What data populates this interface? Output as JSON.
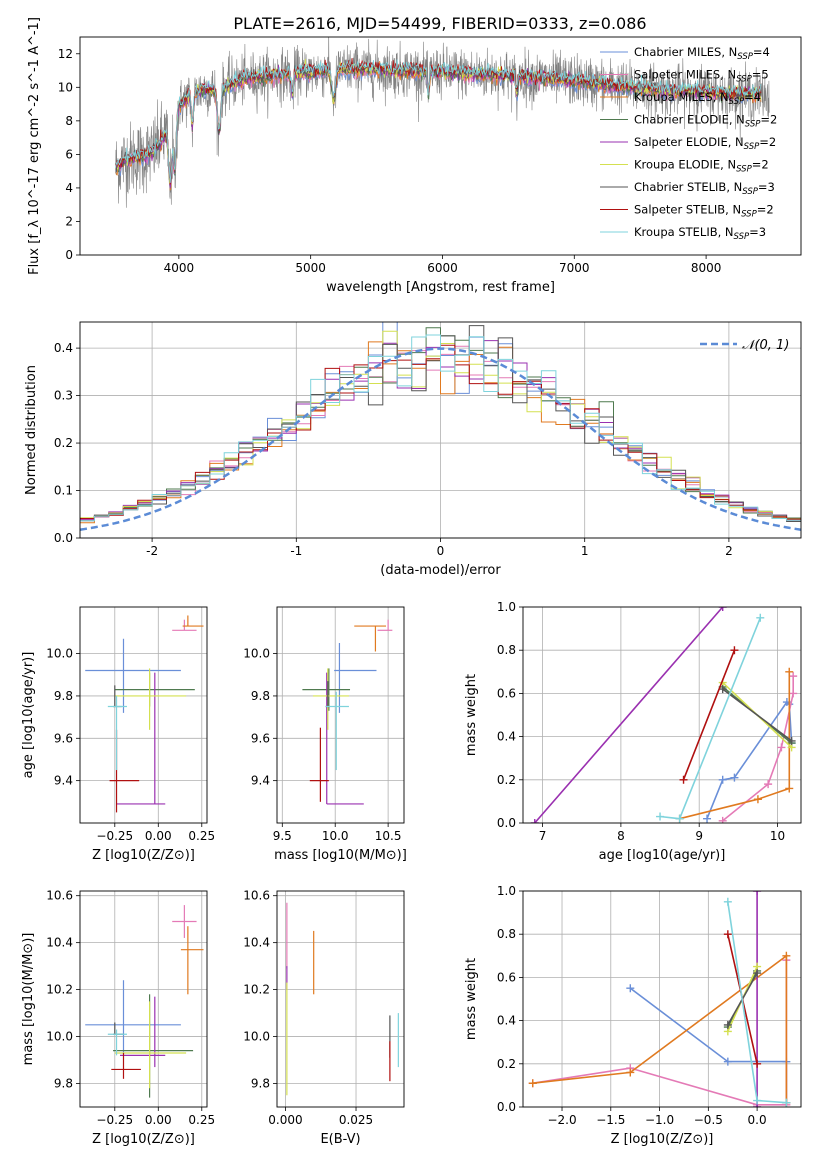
{
  "figure_title": "PLATE=2616, MJD=54499, FIBERID=0333, z=0.086",
  "legend_models": [
    {
      "label": "Chabrier MILES, N_SSP=4",
      "color": "#6a8fd8"
    },
    {
      "label": "Salpeter MILES, N_SSP=5",
      "color": "#e47ab6"
    },
    {
      "label": "Kroupa MILES, N_SSP=4",
      "color": "#e07a20"
    },
    {
      "label": "Chabrier ELODIE, N_SSP=2",
      "color": "#4f7a4f"
    },
    {
      "label": "Salpeter ELODIE, N_SSP=2",
      "color": "#9a30b0"
    },
    {
      "label": "Kroupa ELODIE, N_SSP=2",
      "color": "#d4e050"
    },
    {
      "label": "Chabrier STELIB, N_SSP=3",
      "color": "#555555"
    },
    {
      "label": "Salpeter STELIB, N_SSP=2",
      "color": "#b01010"
    },
    {
      "label": "Kroupa STELIB, N_SSP=3",
      "color": "#7fd3dc"
    }
  ],
  "chart_data": [
    {
      "id": "spectrum",
      "type": "line",
      "xlabel": "wavelength [Angstrom, rest frame]",
      "ylabel": "Flux [f_λ 10^-17 erg cm^-2 s^-1 A^-1]",
      "xlim": [
        3250,
        8720
      ],
      "ylim": [
        0,
        13
      ],
      "xticks": [
        4000,
        5000,
        6000,
        7000,
        8000
      ],
      "yticks": [
        0,
        2,
        4,
        6,
        8,
        10,
        12
      ],
      "observed_color": "#808080",
      "continuum": {
        "x": [
          3520,
          3600,
          3700,
          3800,
          3900,
          3950,
          4000,
          4100,
          4200,
          4300,
          4400,
          4500,
          4700,
          5000,
          5300,
          5600,
          6000,
          6500,
          7000,
          7400,
          7500,
          8000,
          8500
        ],
        "y": [
          5.2,
          5.7,
          5.8,
          6.1,
          7.2,
          7.8,
          8.9,
          9.6,
          9.9,
          9.8,
          10.2,
          10.5,
          10.7,
          10.9,
          11.1,
          11.0,
          10.9,
          10.7,
          10.4,
          10.0,
          9.9,
          9.7,
          9.5
        ]
      },
      "observed_range": [
        3520,
        8480
      ],
      "model_range": [
        3520,
        8420
      ]
    },
    {
      "id": "residuals",
      "type": "histogram",
      "xlabel": "(data-model)/error",
      "ylabel": "Normed distribution",
      "xlim": [
        -2.5,
        2.5
      ],
      "ylim": [
        0,
        0.455
      ],
      "xticks": [
        -2,
        -1,
        0,
        1,
        2
      ],
      "yticks": [
        0.0,
        0.1,
        0.2,
        0.3,
        0.4
      ],
      "bin_width": 0.1,
      "reference_curve": {
        "label": "𝒩(0, 1)",
        "mean": 0,
        "sigma": 1,
        "color": "#5b8bd6"
      }
    },
    {
      "id": "age_vs_Z",
      "type": "errorbar",
      "xlabel": "Z [log10(Z/Z⊙)]",
      "ylabel": "age [log10(age/yr)]",
      "xlim": [
        -0.45,
        0.28
      ],
      "ylim": [
        9.2,
        10.22
      ],
      "xticks": [
        -0.25,
        0.0,
        0.25
      ],
      "yticks": [
        9.4,
        9.6,
        9.8,
        10.0
      ],
      "points": [
        {
          "model": 0,
          "x": -0.2,
          "xerr": [
            0.22,
            0.33
          ],
          "y": 9.92,
          "yerr": [
            0.2,
            0.15
          ]
        },
        {
          "model": 1,
          "x": 0.15,
          "xerr": [
            0.07,
            0.07
          ],
          "y": 10.11,
          "yerr": [
            0.0,
            0.05
          ]
        },
        {
          "model": 2,
          "x": 0.17,
          "xerr": [
            0.03,
            0.09
          ],
          "y": 10.13,
          "yerr": [
            0.0,
            0.05
          ]
        },
        {
          "model": 3,
          "x": -0.05,
          "xerr": [
            0.2,
            0.26
          ],
          "y": 9.83,
          "yerr": [
            0.08,
            0.08
          ]
        },
        {
          "model": 4,
          "x": -0.02,
          "xerr": [
            0.22,
            0.06
          ],
          "y": 9.29,
          "yerr": [
            0.0,
            0.62
          ]
        },
        {
          "model": 5,
          "x": -0.05,
          "xerr": [
            0.2,
            0.21
          ],
          "y": 9.8,
          "yerr": [
            0.16,
            0.13
          ]
        },
        {
          "model": 6,
          "x": -0.25,
          "xerr": [
            0.01,
            0.04
          ],
          "y": 9.75,
          "yerr": [
            0.0,
            0.1
          ]
        },
        {
          "model": 7,
          "x": -0.24,
          "xerr": [
            0.04,
            0.13
          ],
          "y": 9.4,
          "yerr": [
            0.15,
            0.24
          ]
        },
        {
          "model": 8,
          "x": -0.24,
          "xerr": [
            0.05,
            0.06
          ],
          "y": 9.75,
          "yerr": [
            0.3,
            0.05
          ]
        }
      ]
    },
    {
      "id": "age_vs_mass",
      "type": "errorbar",
      "xlabel": "mass [log10(M/M⊙)]",
      "ylabel": "",
      "xlim": [
        9.45,
        10.65
      ],
      "ylim": [
        9.2,
        10.22
      ],
      "xticks": [
        9.5,
        10.0,
        10.5
      ],
      "yticks": [
        9.4,
        9.6,
        9.8,
        10.0
      ],
      "points": [
        {
          "model": 0,
          "x": 10.04,
          "xerr": [
            0.05,
            0.35
          ],
          "y": 9.92,
          "yerr": [
            0.2,
            0.13
          ]
        },
        {
          "model": 1,
          "x": 10.5,
          "xerr": [
            0.1,
            0.04
          ],
          "y": 10.11,
          "yerr": [
            0.0,
            0.05
          ]
        },
        {
          "model": 2,
          "x": 10.38,
          "xerr": [
            0.2,
            0.1
          ],
          "y": 10.13,
          "yerr": [
            0.12,
            0.0
          ]
        },
        {
          "model": 3,
          "x": 9.94,
          "xerr": [
            0.25,
            0.2
          ],
          "y": 9.83,
          "yerr": [
            0.1,
            0.1
          ]
        },
        {
          "model": 4,
          "x": 9.92,
          "xerr": [
            0.0,
            0.35
          ],
          "y": 9.29,
          "yerr": [
            0.0,
            0.62
          ]
        },
        {
          "model": 5,
          "x": 9.93,
          "xerr": [
            0.14,
            0.2
          ],
          "y": 9.8,
          "yerr": [
            0.16,
            0.13
          ]
        },
        {
          "model": 6,
          "x": 9.93,
          "xerr": [
            0.02,
            0.02
          ],
          "y": 9.75,
          "yerr": [
            0.0,
            0.12
          ]
        },
        {
          "model": 7,
          "x": 9.86,
          "xerr": [
            0.1,
            0.08
          ],
          "y": 9.4,
          "yerr": [
            0.1,
            0.25
          ]
        },
        {
          "model": 8,
          "x": 10.01,
          "xerr": [
            0.1,
            0.12
          ],
          "y": 9.75,
          "yerr": [
            0.3,
            0.07
          ]
        }
      ]
    },
    {
      "id": "weight_vs_age",
      "type": "line",
      "xlabel": "age [log10(age/yr)]",
      "ylabel": "mass weight",
      "xlim": [
        6.75,
        10.3
      ],
      "ylim": [
        0,
        1
      ],
      "xticks": [
        7,
        8,
        9,
        10
      ],
      "yticks": [
        0.0,
        0.2,
        0.4,
        0.6,
        0.8,
        1.0
      ],
      "series": [
        {
          "model": 0,
          "x": [
            10.18,
            10.15,
            10.12,
            9.45,
            9.3,
            9.1
          ],
          "y": [
            0.37,
            0.55,
            0.56,
            0.21,
            0.2,
            0.02
          ]
        },
        {
          "model": 1,
          "x": [
            9.3,
            9.88,
            10.05,
            10.2,
            10.2
          ],
          "y": [
            0.01,
            0.18,
            0.35,
            0.6,
            0.68
          ]
        },
        {
          "model": 2,
          "x": [
            8.75,
            9.75,
            10.15,
            10.15
          ],
          "y": [
            0.02,
            0.11,
            0.16,
            0.7
          ]
        },
        {
          "model": 3,
          "x": [
            9.3,
            10.18
          ],
          "y": [
            0.63,
            0.37
          ]
        },
        {
          "model": 4,
          "x": [
            6.9,
            9.3
          ],
          "y": [
            0.0,
            1.0
          ]
        },
        {
          "model": 5,
          "x": [
            9.3,
            10.18
          ],
          "y": [
            0.65,
            0.35
          ]
        },
        {
          "model": 6,
          "x": [
            9.3,
            10.18
          ],
          "y": [
            0.62,
            0.38
          ]
        },
        {
          "model": 7,
          "x": [
            8.8,
            9.45
          ],
          "y": [
            0.2,
            0.8
          ]
        },
        {
          "model": 8,
          "x": [
            8.5,
            8.75,
            9.78
          ],
          "y": [
            0.03,
            0.02,
            0.95
          ]
        }
      ]
    },
    {
      "id": "mass_vs_Z",
      "type": "errorbar",
      "xlabel": "Z [log10(Z/Z⊙)]",
      "ylabel": "mass [log10(M/M⊙)]",
      "xlim": [
        -0.45,
        0.28
      ],
      "ylim": [
        9.7,
        10.62
      ],
      "xticks": [
        -0.25,
        0.0,
        0.25
      ],
      "yticks": [
        9.8,
        10.0,
        10.2,
        10.4,
        10.6
      ],
      "points": [
        {
          "model": 0,
          "x": -0.2,
          "xerr": [
            0.22,
            0.33
          ],
          "y": 10.05,
          "yerr": [
            0.12,
            0.19
          ]
        },
        {
          "model": 1,
          "x": 0.15,
          "xerr": [
            0.07,
            0.07
          ],
          "y": 10.49,
          "yerr": [
            0.07,
            0.07
          ]
        },
        {
          "model": 2,
          "x": 0.17,
          "xerr": [
            0.04,
            0.09
          ],
          "y": 10.37,
          "yerr": [
            0.19,
            0.1
          ]
        },
        {
          "model": 3,
          "x": -0.05,
          "xerr": [
            0.21,
            0.25
          ],
          "y": 9.94,
          "yerr": [
            0.2,
            0.24
          ]
        },
        {
          "model": 4,
          "x": -0.02,
          "xerr": [
            0.2,
            0.06
          ],
          "y": 9.92,
          "yerr": [
            0.05,
            0.25
          ]
        },
        {
          "model": 5,
          "x": -0.05,
          "xerr": [
            0.2,
            0.21
          ],
          "y": 9.93,
          "yerr": [
            0.15,
            0.22
          ]
        },
        {
          "model": 6,
          "x": -0.25,
          "xerr": [
            0.01,
            0.05
          ],
          "y": 10.01,
          "yerr": [
            0.0,
            0.05
          ]
        },
        {
          "model": 7,
          "x": -0.2,
          "xerr": [
            0.07,
            0.1
          ],
          "y": 9.86,
          "yerr": [
            0.04,
            0.07
          ]
        },
        {
          "model": 8,
          "x": -0.24,
          "xerr": [
            0.05,
            0.06
          ],
          "y": 10.01,
          "yerr": [
            0.09,
            0.02
          ]
        }
      ]
    },
    {
      "id": "mass_vs_ebv",
      "type": "errorbar",
      "xlabel": "E(B-V)",
      "ylabel": "",
      "xlim": [
        -0.003,
        0.042
      ],
      "ylim": [
        9.7,
        10.62
      ],
      "xticks": [
        0.0,
        0.025
      ],
      "xticklabels": [
        "0.000",
        "0.025"
      ],
      "yticks": [
        9.8,
        10.0,
        10.2,
        10.4,
        10.6
      ],
      "points": [
        {
          "model": 2,
          "x": 0.01,
          "xerr": [
            0,
            0
          ],
          "y": 10.37,
          "yerr": [
            0.19,
            0.08
          ]
        },
        {
          "model": 1,
          "x": 0.0005,
          "xerr": [
            0,
            0
          ],
          "y": 10.49,
          "yerr": [
            0.2,
            0.08
          ]
        },
        {
          "model": 4,
          "x": 0.0005,
          "xerr": [
            0,
            0
          ],
          "y": 10.25,
          "yerr": [
            0.05,
            0.05
          ]
        },
        {
          "model": 5,
          "x": 0.0005,
          "xerr": [
            0,
            0
          ],
          "y": 9.93,
          "yerr": [
            0.18,
            0.3
          ]
        },
        {
          "model": 6,
          "x": 0.037,
          "xerr": [
            0,
            0
          ],
          "y": 10.0,
          "yerr": [
            0.09,
            0.09
          ]
        },
        {
          "model": 7,
          "x": 0.037,
          "xerr": [
            0,
            0
          ],
          "y": 9.9,
          "yerr": [
            0.09,
            0.08
          ]
        },
        {
          "model": 8,
          "x": 0.04,
          "xerr": [
            0,
            0
          ],
          "y": 9.95,
          "yerr": [
            0.08,
            0.15
          ]
        }
      ]
    },
    {
      "id": "weight_vs_Z",
      "type": "line",
      "xlabel": "Z [log10(Z/Z⊙)]",
      "ylabel": "mass weight",
      "xlim": [
        -2.4,
        0.45
      ],
      "ylim": [
        0,
        1
      ],
      "xticks": [
        -2.0,
        -1.5,
        -1.0,
        -0.5,
        0.0
      ],
      "yticks": [
        0.0,
        0.2,
        0.4,
        0.6,
        0.8,
        1.0
      ],
      "series": [
        {
          "model": 0,
          "x": [
            -1.3,
            -0.3,
            0.3,
            0.3
          ],
          "y": [
            0.55,
            0.21,
            0.21,
            0.02
          ]
        },
        {
          "model": 1,
          "x": [
            -2.3,
            -1.3,
            0.0,
            0.3,
            0.3
          ],
          "y": [
            0.11,
            0.18,
            0.01,
            0.01,
            0.68
          ]
        },
        {
          "model": 2,
          "x": [
            -2.3,
            -1.3,
            0.3,
            0.3
          ],
          "y": [
            0.11,
            0.16,
            0.7,
            0.02
          ]
        },
        {
          "model": 3,
          "x": [
            -0.3,
            0.0
          ],
          "y": [
            0.37,
            0.63
          ]
        },
        {
          "model": 4,
          "x": [
            0.0,
            0.0
          ],
          "y": [
            0.0,
            1.0
          ]
        },
        {
          "model": 5,
          "x": [
            -0.3,
            0.0
          ],
          "y": [
            0.35,
            0.65
          ]
        },
        {
          "model": 6,
          "x": [
            -0.3,
            0.0
          ],
          "y": [
            0.38,
            0.62
          ]
        },
        {
          "model": 7,
          "x": [
            -0.3,
            0.0
          ],
          "y": [
            0.8,
            0.2
          ]
        },
        {
          "model": 8,
          "x": [
            -0.3,
            0.0,
            0.3
          ],
          "y": [
            0.95,
            0.03,
            0.02
          ]
        }
      ]
    }
  ]
}
